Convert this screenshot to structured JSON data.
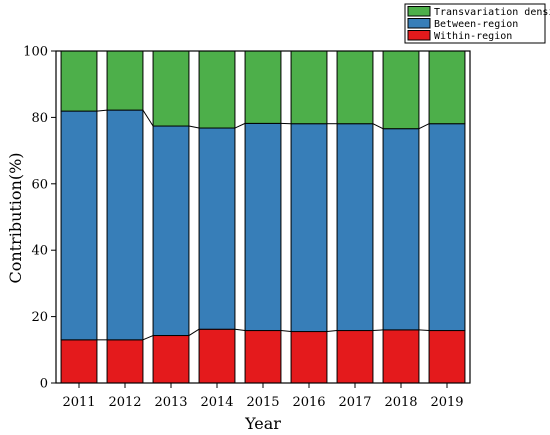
{
  "chart_data": {
    "type": "bar",
    "stacked": true,
    "categories": [
      "2011",
      "2012",
      "2013",
      "2014",
      "2015",
      "2016",
      "2017",
      "2018",
      "2019"
    ],
    "series": [
      {
        "name": "Within-region",
        "color": "#e41a1c",
        "values": [
          13,
          13,
          14.3,
          16.2,
          15.8,
          15.5,
          15.8,
          16,
          15.8
        ]
      },
      {
        "name": "Between-region",
        "color": "#377eb8",
        "values": [
          68.9,
          69.2,
          63.1,
          60.6,
          62.4,
          62.6,
          62.3,
          60.6,
          62.3
        ]
      },
      {
        "name": "Transvariation density",
        "color": "#4daf4a",
        "values": [
          18.1,
          17.8,
          22.6,
          23.2,
          21.8,
          21.9,
          21.9,
          23.4,
          21.9
        ]
      }
    ],
    "legend_order": [
      "Transvariation density",
      "Between-region",
      "Within-region"
    ],
    "title": "",
    "xlabel": "Year",
    "ylabel": "Contribution(%)",
    "ylim": [
      0,
      100
    ],
    "yticks": [
      0,
      20,
      40,
      60,
      80,
      100
    ],
    "grid": false,
    "legend_position": "top-right, outside plot"
  }
}
